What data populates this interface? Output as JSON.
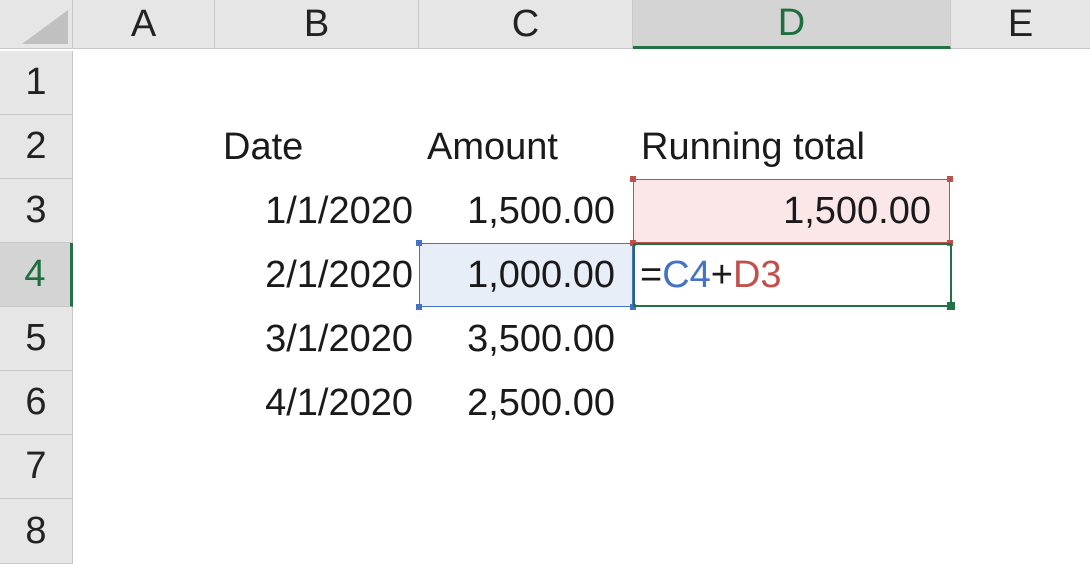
{
  "sheet": {
    "columns": [
      "A",
      "B",
      "C",
      "D",
      "E"
    ],
    "rows": [
      "1",
      "2",
      "3",
      "4",
      "5",
      "6",
      "7",
      "8"
    ],
    "active_column": "D",
    "active_row": "4"
  },
  "headers": {
    "date": "Date",
    "amount": "Amount",
    "running_total": "Running total"
  },
  "data_rows": [
    {
      "date": "1/1/2020",
      "amount": "1,500.00"
    },
    {
      "date": "2/1/2020",
      "amount": "1,000.00"
    },
    {
      "date": "3/1/2020",
      "amount": "3,500.00"
    },
    {
      "date": "4/1/2020",
      "amount": "2,500.00"
    }
  ],
  "running_total": {
    "d3": "1,500.00"
  },
  "formula": {
    "prefix": "=",
    "ref1": "C4",
    "operator": "+",
    "ref2": "D3"
  },
  "colors": {
    "ref_blue": "#4472c4",
    "ref_red": "#c0504d",
    "active_green": "#217346"
  }
}
